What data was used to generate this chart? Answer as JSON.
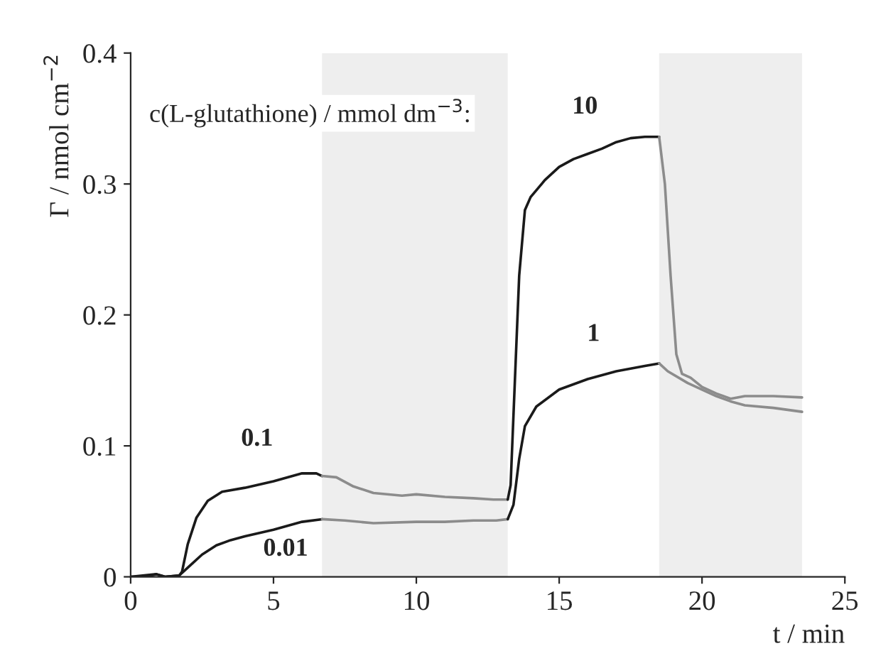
{
  "chart_data": {
    "type": "line",
    "xlabel": "t / min",
    "ylabel": "Γ / nmol cm$^{−2}$",
    "xlim": [
      0,
      25
    ],
    "ylim": [
      0,
      0.4
    ],
    "xticks": [
      0,
      5,
      10,
      15,
      20,
      25
    ],
    "yticks": [
      0,
      0.1,
      0.2,
      0.3,
      0.4
    ],
    "grid": false,
    "legend": false,
    "marker": "none",
    "line_style": "solid",
    "bands": [
      {
        "axis": "x",
        "from": 6.7,
        "to": 13.2,
        "color": "#eeeeee"
      },
      {
        "axis": "x",
        "from": 18.5,
        "to": 23.5,
        "color": "#eeeeee"
      }
    ],
    "series": [
      {
        "color": "#1a1a1a",
        "x": [
          0,
          0.5,
          0.9,
          1.2,
          1.7,
          1.8,
          2.0,
          2.3,
          2.7,
          3.2,
          4,
          5,
          6,
          6.5,
          6.7
        ],
        "values": [
          0,
          0,
          0.002,
          0,
          0.001,
          0.004,
          0.025,
          0.045,
          0.058,
          0.065,
          0.068,
          0.073,
          0.079,
          0.079,
          0.077
        ]
      },
      {
        "color": "#8c8c8c",
        "x": [
          6.7,
          7.2,
          7.8,
          8.5,
          9.5,
          10,
          11,
          12,
          12.7,
          13.2
        ],
        "values": [
          0.077,
          0.076,
          0.069,
          0.064,
          0.062,
          0.063,
          0.061,
          0.06,
          0.059,
          0.059
        ]
      },
      {
        "color": "#1a1a1a",
        "x": [
          13.2,
          13.3,
          13.45,
          13.6,
          13.8,
          14.0,
          14.5,
          15,
          15.5,
          16,
          16.5,
          17,
          17.5,
          18,
          18.5
        ],
        "values": [
          0.059,
          0.07,
          0.15,
          0.23,
          0.28,
          0.29,
          0.303,
          0.313,
          0.319,
          0.323,
          0.327,
          0.332,
          0.335,
          0.336,
          0.336
        ]
      },
      {
        "color": "#8c8c8c",
        "x": [
          18.5,
          18.7,
          18.9,
          19.1,
          19.3,
          19.6,
          20,
          20.5,
          21,
          21.5,
          22.5,
          23.5
        ],
        "values": [
          0.336,
          0.3,
          0.23,
          0.17,
          0.155,
          0.152,
          0.145,
          0.14,
          0.136,
          0.138,
          0.138,
          0.137
        ]
      },
      {
        "color": "#1a1a1a",
        "x": [
          0,
          0.9,
          1.2,
          1.7,
          2.0,
          2.5,
          3,
          3.5,
          4,
          5,
          6,
          6.7
        ],
        "values": [
          0,
          0.002,
          0,
          0.001,
          0.007,
          0.017,
          0.024,
          0.028,
          0.031,
          0.036,
          0.042,
          0.044
        ]
      },
      {
        "color": "#8c8c8c",
        "x": [
          6.7,
          7.5,
          8.5,
          10,
          11,
          12,
          12.8,
          13.2
        ],
        "values": [
          0.044,
          0.043,
          0.041,
          0.042,
          0.042,
          0.043,
          0.043,
          0.044
        ]
      },
      {
        "color": "#1a1a1a",
        "x": [
          13.2,
          13.4,
          13.6,
          13.8,
          14.2,
          15,
          16,
          17,
          18,
          18.5
        ],
        "values": [
          0.044,
          0.055,
          0.09,
          0.115,
          0.13,
          0.143,
          0.151,
          0.157,
          0.161,
          0.163
        ]
      },
      {
        "color": "#8c8c8c",
        "x": [
          18.5,
          18.8,
          19.5,
          20,
          20.5,
          21,
          21.5,
          22.5,
          23.5
        ],
        "values": [
          0.163,
          0.157,
          0.148,
          0.143,
          0.138,
          0.134,
          0.131,
          0.129,
          0.126
        ]
      }
    ],
    "annotations": [
      "c(L-glutathione) / mmol dm$^{−3}$:",
      "0.1",
      "0.01",
      "10",
      "1"
    ]
  }
}
